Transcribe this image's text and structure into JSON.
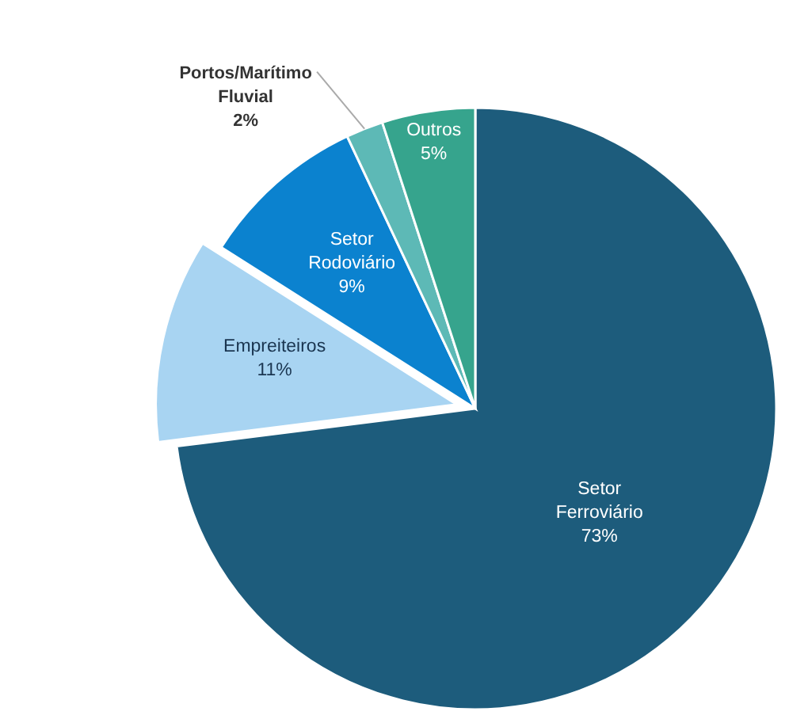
{
  "chart_data": {
    "type": "pie",
    "categories": [
      "Setor Ferroviário",
      "Empreiteiros",
      "Setor Rodoviário",
      "Portos/Marítimo Fluvial",
      "Outros"
    ],
    "values": [
      73,
      11,
      9,
      2,
      5
    ],
    "value_labels": [
      "73%",
      "11%",
      "9%",
      "2%",
      "5%"
    ],
    "colors": [
      "#1d5c7c",
      "#a8d4f2",
      "#0b82cf",
      "#5db9b6",
      "#36a48d"
    ]
  }
}
